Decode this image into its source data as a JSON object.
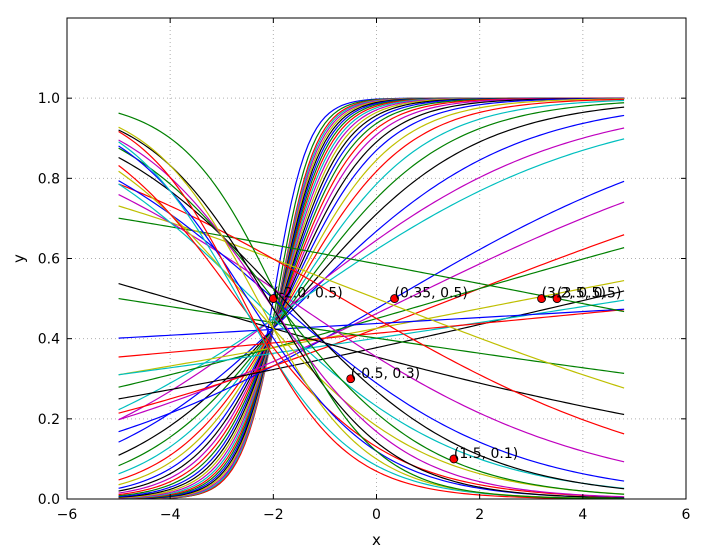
{
  "chart_data": {
    "type": "line",
    "title": "",
    "xlabel": "x",
    "ylabel": "y",
    "xlim": [
      -6,
      6
    ],
    "ylim": [
      0,
      1.2
    ],
    "xticks": [
      -6,
      -4,
      -2,
      0,
      2,
      4,
      6
    ],
    "xtick_labels": [
      "−6",
      "−4",
      "−2",
      "0",
      "2",
      "4",
      "6"
    ],
    "yticks": [
      0.0,
      0.2,
      0.4,
      0.6,
      0.8,
      1.0
    ],
    "ytick_labels": [
      "0.0",
      "0.2",
      "0.4",
      "0.6",
      "0.8",
      "1.0"
    ],
    "grid": true,
    "curve_x_range": [
      -5,
      4.8
    ],
    "curve_function": "y = 1 / (1 + exp(-(w*x + b)))",
    "curves": [
      {
        "w": 3.0,
        "b": 6.0,
        "color": "#0000ff"
      },
      {
        "w": 2.9,
        "b": 5.6,
        "color": "#008000"
      },
      {
        "w": 2.8,
        "b": 5.3,
        "color": "#ff0000"
      },
      {
        "w": 2.7,
        "b": 5.1,
        "color": "#00bfbf"
      },
      {
        "w": 2.6,
        "b": 4.9,
        "color": "#bf00bf"
      },
      {
        "w": 2.5,
        "b": 4.7,
        "color": "#bfbf00"
      },
      {
        "w": 2.4,
        "b": 4.5,
        "color": "#000000"
      },
      {
        "w": 2.3,
        "b": 4.3,
        "color": "#0000ff"
      },
      {
        "w": 2.2,
        "b": 4.1,
        "color": "#008000"
      },
      {
        "w": 2.1,
        "b": 3.9,
        "color": "#ff0000"
      },
      {
        "w": 2.0,
        "b": 3.7,
        "color": "#00bfbf"
      },
      {
        "w": 1.9,
        "b": 3.5,
        "color": "#bf00bf"
      },
      {
        "w": 1.8,
        "b": 3.3,
        "color": "#bfbf00"
      },
      {
        "w": 1.7,
        "b": 3.1,
        "color": "#000000"
      },
      {
        "w": 1.6,
        "b": 2.9,
        "color": "#0000ff"
      },
      {
        "w": 1.5,
        "b": 2.7,
        "color": "#008000"
      },
      {
        "w": 1.4,
        "b": 2.5,
        "color": "#ff0000"
      },
      {
        "w": 1.3,
        "b": 2.3,
        "color": "#bf00bf"
      },
      {
        "w": 1.2,
        "b": 2.1,
        "color": "#000000"
      },
      {
        "w": 1.1,
        "b": 1.9,
        "color": "#0000ff"
      },
      {
        "w": 1.0,
        "b": 1.7,
        "color": "#bfbf00"
      },
      {
        "w": 0.9,
        "b": 1.5,
        "color": "#ff0000"
      },
      {
        "w": 0.8,
        "b": 1.3,
        "color": "#00bfbf"
      },
      {
        "w": 0.7,
        "b": 1.1,
        "color": "#008000"
      },
      {
        "w": 0.6,
        "b": 0.9,
        "color": "#000000"
      },
      {
        "w": 0.5,
        "b": 0.7,
        "color": "#0000ff"
      },
      {
        "w": 0.4,
        "b": 0.6,
        "color": "#bf00bf"
      },
      {
        "w": 0.35,
        "b": 0.5,
        "color": "#00bfbf"
      },
      {
        "w": 0.3,
        "b": -0.1,
        "color": "#0000ff"
      },
      {
        "w": 0.25,
        "b": -0.15,
        "color": "#bf00bf"
      },
      {
        "w": 0.2,
        "b": -0.3,
        "color": "#ff0000"
      },
      {
        "w": 0.15,
        "b": -0.2,
        "color": "#008000"
      },
      {
        "w": 0.12,
        "b": -0.5,
        "color": "#000000"
      },
      {
        "w": 0.1,
        "b": -0.3,
        "color": "#bfbf00"
      },
      {
        "w": 0.08,
        "b": -0.4,
        "color": "#00bfbf"
      },
      {
        "w": 0.05,
        "b": -0.35,
        "color": "#ff0000"
      },
      {
        "w": 0.03,
        "b": -0.25,
        "color": "#0000ff"
      },
      {
        "w": -0.08,
        "b": -0.4,
        "color": "#008000"
      },
      {
        "w": -0.1,
        "b": 0.35,
        "color": "#008000"
      },
      {
        "w": -0.15,
        "b": -0.6,
        "color": "#000000"
      },
      {
        "w": -0.2,
        "b": 0.0,
        "color": "#bfbf00"
      },
      {
        "w": -0.3,
        "b": -0.2,
        "color": "#ff0000"
      },
      {
        "w": -0.35,
        "b": -0.6,
        "color": "#bf00bf"
      },
      {
        "w": -0.45,
        "b": -0.9,
        "color": "#0000ff"
      },
      {
        "w": -0.5,
        "b": -1.2,
        "color": "#00bfbf"
      },
      {
        "w": -0.55,
        "b": -1.0,
        "color": "#000000"
      },
      {
        "w": -0.6,
        "b": -1.5,
        "color": "#bfbf00"
      },
      {
        "w": -0.65,
        "b": -1.3,
        "color": "#008000"
      },
      {
        "w": -0.7,
        "b": -1.9,
        "color": "#ff0000"
      },
      {
        "w": -0.75,
        "b": -1.6,
        "color": "#bf00bf"
      },
      {
        "w": -0.8,
        "b": -2.0,
        "color": "#0000ff"
      },
      {
        "w": -0.85,
        "b": -1.8,
        "color": "#000000"
      },
      {
        "w": -0.9,
        "b": -2.4,
        "color": "#00bfbf"
      },
      {
        "w": -0.95,
        "b": -2.2,
        "color": "#bfbf00"
      },
      {
        "w": -1.0,
        "b": -2.6,
        "color": "#ff0000"
      },
      {
        "w": -1.05,
        "b": -2.0,
        "color": "#008000"
      }
    ],
    "points": [
      {
        "x": -2.0,
        "y": 0.5,
        "label": "(-2.0, 0.5)"
      },
      {
        "x": 0.35,
        "y": 0.5,
        "label": "(0.35, 0.5)"
      },
      {
        "x": -0.5,
        "y": 0.3,
        "label": "(-0.5, 0.3)"
      },
      {
        "x": 1.5,
        "y": 0.1,
        "label": "(1.5, 0.1)"
      },
      {
        "x": 3.2,
        "y": 0.5,
        "label": "(3.2, 0.5)"
      },
      {
        "x": 3.5,
        "y": 0.5,
        "label": "(3.5, 0.5)"
      }
    ],
    "point_color": "#ff0000"
  }
}
